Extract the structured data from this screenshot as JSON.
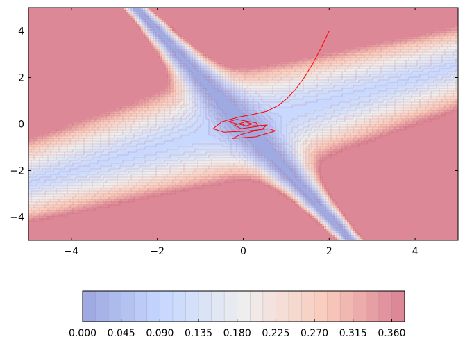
{
  "chart_data": [
    {
      "type": "contour",
      "title": "",
      "xlabel": "",
      "ylabel": "",
      "xlim": [
        -5,
        5
      ],
      "ylim": [
        -5,
        5
      ],
      "x_ticks": [
        -4,
        -2,
        0,
        2,
        4
      ],
      "y_ticks": [
        -4,
        -2,
        0,
        2,
        4
      ],
      "x_tick_labels": [
        "−4",
        "−2",
        "0",
        "2",
        "4"
      ],
      "y_tick_labels": [
        "−4",
        "−2",
        "0",
        "2",
        "4"
      ],
      "colormap": "coolwarm",
      "alpha": 0.5,
      "levels": [
        0.0,
        0.015,
        0.03,
        0.045,
        0.06,
        0.075,
        0.09,
        0.105,
        0.12,
        0.135,
        0.15,
        0.165,
        0.18,
        0.195,
        0.21,
        0.225,
        0.24,
        0.255,
        0.27,
        0.285,
        0.3,
        0.315,
        0.33,
        0.345,
        0.36,
        0.375
      ],
      "grid": false,
      "series": [
        {
          "type": "line",
          "color": "#ff0000",
          "x": [
            2.0,
            1.82,
            1.62,
            1.42,
            1.22,
            1.02,
            0.82,
            0.55,
            0.25,
            -0.1,
            -0.5,
            -0.7,
            -0.45,
            0.1,
            0.6,
            0.75,
            0.3,
            -0.25,
            -0.05,
            0.45,
            0.55,
            0.1,
            -0.35,
            -0.15,
            0.3,
            0.35,
            -0.05,
            -0.2,
            0.05,
            0.2,
            0.05,
            -0.05
          ],
          "y": [
            4.0,
            3.3,
            2.6,
            2.0,
            1.5,
            1.1,
            0.8,
            0.55,
            0.42,
            0.3,
            0.1,
            -0.2,
            -0.35,
            -0.3,
            -0.2,
            -0.3,
            -0.55,
            -0.62,
            -0.45,
            -0.2,
            -0.05,
            -0.1,
            0.1,
            0.2,
            0.05,
            -0.1,
            -0.2,
            -0.05,
            0.1,
            0.0,
            -0.1,
            0.05
          ]
        }
      ]
    },
    {
      "type": "colorbar",
      "orientation": "horizontal",
      "range": [
        0.0,
        0.375
      ],
      "tick_values": [
        0.0,
        0.045,
        0.09,
        0.135,
        0.18,
        0.225,
        0.27,
        0.315,
        0.36
      ],
      "tick_labels": [
        "0.000",
        "0.045",
        "0.090",
        "0.135",
        "0.180",
        "0.225",
        "0.270",
        "0.315",
        "0.360"
      ]
    }
  ]
}
